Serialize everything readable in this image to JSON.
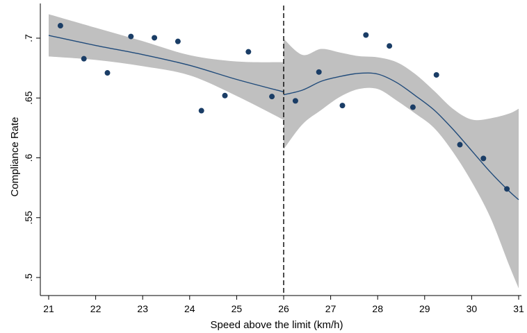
{
  "chart_data": {
    "type": "scatter",
    "title": "",
    "xlabel": "Speed above the limit (km/h)",
    "ylabel": "Compliance Rate",
    "xlim": [
      21,
      31
    ],
    "ylim": [
      0.49,
      0.72
    ],
    "x_ticks": [
      21,
      22,
      23,
      24,
      25,
      26,
      27,
      28,
      29,
      30,
      31
    ],
    "x_tick_labels": [
      "21",
      "22",
      "23",
      "24",
      "25",
      "26",
      "27",
      "28",
      "29",
      "30",
      "31"
    ],
    "y_ticks": [
      0.5,
      0.55,
      0.6,
      0.65,
      0.7
    ],
    "y_tick_labels": [
      ".5",
      ".55",
      ".6",
      ".65",
      ".7"
    ],
    "cutoff": 26,
    "grid": false,
    "colors": {
      "points": "#1a3d66",
      "fit": "#1f4a7a",
      "ci_band": "#c0c0c0",
      "cutoff_line": "#000000"
    },
    "points": [
      {
        "x": 21.25,
        "y": 0.7104
      },
      {
        "x": 21.75,
        "y": 0.6828
      },
      {
        "x": 22.25,
        "y": 0.671
      },
      {
        "x": 22.75,
        "y": 0.7014
      },
      {
        "x": 23.25,
        "y": 0.7003
      },
      {
        "x": 23.75,
        "y": 0.6973
      },
      {
        "x": 24.25,
        "y": 0.6394
      },
      {
        "x": 24.75,
        "y": 0.652
      },
      {
        "x": 25.25,
        "y": 0.6886
      },
      {
        "x": 25.75,
        "y": 0.6512
      },
      {
        "x": 26.25,
        "y": 0.6476
      },
      {
        "x": 26.75,
        "y": 0.6717
      },
      {
        "x": 27.25,
        "y": 0.6437
      },
      {
        "x": 27.75,
        "y": 0.7026
      },
      {
        "x": 28.25,
        "y": 0.6935
      },
      {
        "x": 28.75,
        "y": 0.6423
      },
      {
        "x": 29.25,
        "y": 0.6693
      },
      {
        "x": 29.75,
        "y": 0.611
      },
      {
        "x": 30.25,
        "y": 0.5995
      },
      {
        "x": 30.75,
        "y": 0.574
      }
    ],
    "fit_left": [
      {
        "x": 21,
        "y": 0.7023,
        "lo": 0.6847,
        "hi": 0.72
      },
      {
        "x": 22,
        "y": 0.6939,
        "lo": 0.6818,
        "hi": 0.7087
      },
      {
        "x": 23,
        "y": 0.6863,
        "lo": 0.6766,
        "hi": 0.6975
      },
      {
        "x": 24,
        "y": 0.6773,
        "lo": 0.6689,
        "hi": 0.6858
      },
      {
        "x": 25,
        "y": 0.6655,
        "lo": 0.6517,
        "hi": 0.6805
      },
      {
        "x": 26,
        "y": 0.6551,
        "lo": 0.6317,
        "hi": 0.6799
      }
    ],
    "fit_right": [
      {
        "x": 26.0,
        "y": 0.6527,
        "lo": 0.6072,
        "hi": 0.6994
      },
      {
        "x": 26.4,
        "y": 0.6566,
        "lo": 0.628,
        "hi": 0.686
      },
      {
        "x": 26.8,
        "y": 0.664,
        "lo": 0.64,
        "hi": 0.691
      },
      {
        "x": 27.2,
        "y": 0.668,
        "lo": 0.651,
        "hi": 0.688
      },
      {
        "x": 27.6,
        "y": 0.6706,
        "lo": 0.6575,
        "hi": 0.685
      },
      {
        "x": 28.0,
        "y": 0.67,
        "lo": 0.6575,
        "hi": 0.684
      },
      {
        "x": 28.4,
        "y": 0.663,
        "lo": 0.648,
        "hi": 0.68
      },
      {
        "x": 28.8,
        "y": 0.652,
        "lo": 0.637,
        "hi": 0.67
      },
      {
        "x": 29.2,
        "y": 0.64,
        "lo": 0.625,
        "hi": 0.656
      },
      {
        "x": 29.6,
        "y": 0.624,
        "lo": 0.605,
        "hi": 0.641
      },
      {
        "x": 30.0,
        "y": 0.606,
        "lo": 0.58,
        "hi": 0.632
      },
      {
        "x": 30.4,
        "y": 0.588,
        "lo": 0.55,
        "hi": 0.633
      },
      {
        "x": 30.8,
        "y": 0.572,
        "lo": 0.51,
        "hi": 0.637
      },
      {
        "x": 31.0,
        "y": 0.565,
        "lo": 0.491,
        "hi": 0.641
      }
    ]
  }
}
